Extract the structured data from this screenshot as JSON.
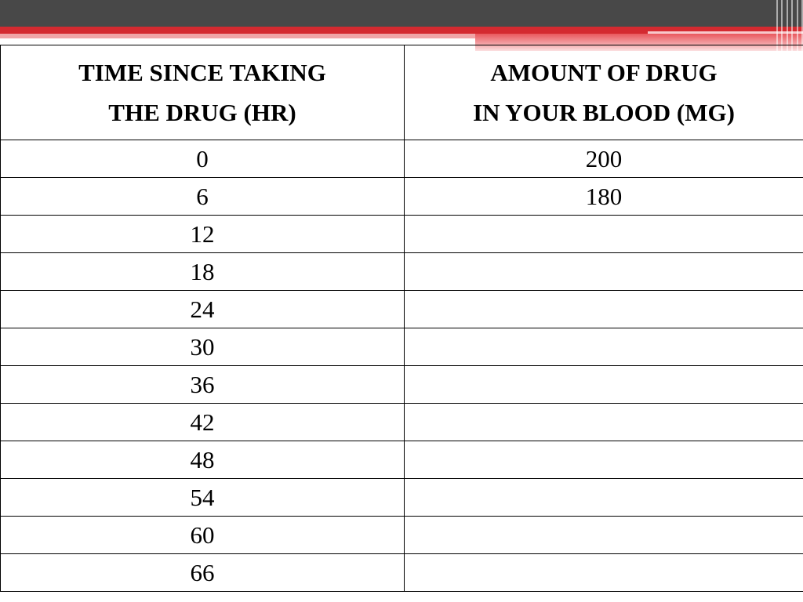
{
  "table": {
    "headers": [
      {
        "line1": "TIME SINCE TAKING",
        "line2": "THE DRUG (HR)"
      },
      {
        "line1": "AMOUNT OF DRUG",
        "line2": "IN YOUR BLOOD (MG)"
      }
    ],
    "rows": [
      {
        "time": "0",
        "amount": "200"
      },
      {
        "time": "6",
        "amount": "180"
      },
      {
        "time": "12",
        "amount": ""
      },
      {
        "time": "18",
        "amount": ""
      },
      {
        "time": "24",
        "amount": ""
      },
      {
        "time": "30",
        "amount": ""
      },
      {
        "time": "36",
        "amount": ""
      },
      {
        "time": "42",
        "amount": ""
      },
      {
        "time": "48",
        "amount": ""
      },
      {
        "time": "54",
        "amount": ""
      },
      {
        "time": "60",
        "amount": ""
      },
      {
        "time": "66",
        "amount": ""
      }
    ]
  },
  "theme": {
    "banner_dark": "#484848",
    "banner_red": "#d42a30",
    "banner_pink": "#f0a5a7"
  }
}
